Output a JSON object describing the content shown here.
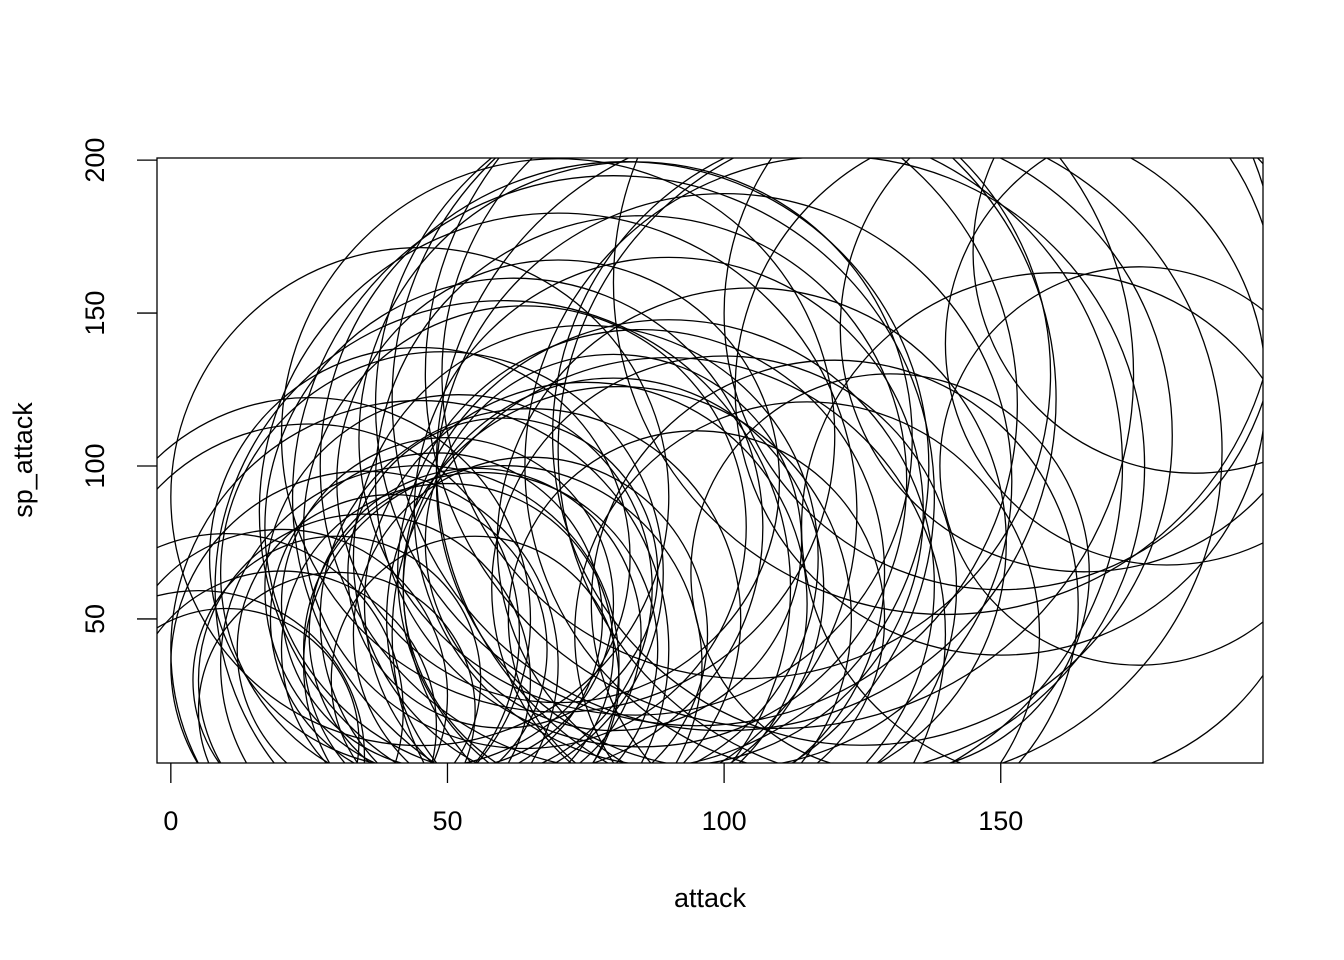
{
  "chart_data": {
    "type": "bubble",
    "x_label": "attack",
    "y_label": "sp_attack",
    "x": [
      49,
      62,
      82,
      100,
      52,
      64,
      84,
      104,
      48,
      30,
      20,
      45,
      35,
      25,
      90,
      45,
      80,
      56,
      81,
      60,
      90,
      55,
      85,
      20,
      45,
      60,
      80,
      105,
      110,
      70,
      95,
      65,
      125,
      130,
      75,
      50,
      85,
      40,
      70,
      110,
      150,
      185,
      160,
      130,
      120,
      95,
      65,
      55,
      75,
      100,
      35,
      25,
      10,
      5,
      140,
      165,
      175,
      115,
      60,
      80,
      90,
      70,
      45,
      50,
      100,
      120,
      30,
      150,
      180,
      10
    ],
    "values": [
      65,
      80,
      100,
      122,
      60,
      80,
      109,
      130,
      50,
      20,
      25,
      90,
      35,
      50,
      45,
      40,
      60,
      40,
      50,
      35,
      61,
      45,
      65,
      15,
      35,
      60,
      90,
      75,
      100,
      95,
      50,
      50,
      110,
      105,
      70,
      40,
      95,
      40,
      85,
      130,
      150,
      170,
      80,
      65,
      55,
      120,
      45,
      30,
      55,
      95,
      30,
      45,
      10,
      5,
      160,
      145,
      100,
      45,
      65,
      75,
      85,
      110,
      70,
      55,
      60,
      100,
      30,
      125,
      140,
      20
    ],
    "sizes": [
      40,
      45,
      55,
      60,
      35,
      40,
      50,
      55,
      30,
      25,
      30,
      45,
      35,
      40,
      50,
      45,
      38,
      32,
      42,
      36,
      48,
      30,
      44,
      28,
      36,
      52,
      58,
      46,
      62,
      40,
      34,
      38,
      56,
      60,
      42,
      30,
      48,
      28,
      54,
      64,
      50,
      40,
      46,
      36,
      44,
      58,
      32,
      26,
      40,
      52,
      30,
      38,
      24,
      30,
      60,
      44,
      36,
      42,
      28,
      34,
      46,
      50,
      38,
      30,
      42,
      56,
      26,
      48,
      40,
      32
    ],
    "xlim": [
      -2.5,
      197.4
    ],
    "ylim": [
      2.9,
      200.7
    ],
    "xticks": [
      0,
      50,
      100,
      150
    ],
    "yticks": [
      50,
      100,
      150,
      200
    ],
    "color": "#000000"
  }
}
